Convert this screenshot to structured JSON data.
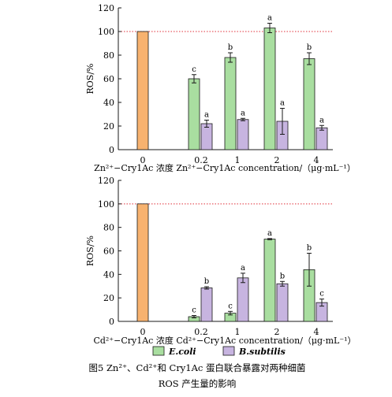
{
  "chart_data": [
    {
      "type": "bar",
      "ylabel": "ROS/%",
      "xlabel": "Zn²⁺−Cry1Ac 浓度 Zn²⁺−Cry1Ac concentration/（μg·mL⁻¹）",
      "ylim": [
        0,
        120
      ],
      "yticks": [
        "0",
        "20",
        "40",
        "60",
        "80",
        "100",
        "120"
      ],
      "reference_line": 100,
      "categories": [
        "0",
        "0.2",
        "1",
        "2",
        "4"
      ],
      "series": [
        {
          "name": "",
          "values": [
            100,
            null,
            null,
            null,
            null
          ],
          "errors": [
            0,
            null,
            null,
            null,
            null
          ],
          "letters": [
            "",
            "",
            "",
            "",
            ""
          ]
        },
        {
          "name": "E.coli",
          "values": [
            null,
            60,
            78,
            103,
            77
          ],
          "errors": [
            null,
            3.5,
            4,
            4,
            5
          ],
          "letters": [
            "",
            "c",
            "b",
            "a",
            "b"
          ]
        },
        {
          "name": "B.subtilis",
          "values": [
            null,
            22,
            25.5,
            24,
            18.5
          ],
          "errors": [
            null,
            3,
            1,
            11,
            2
          ],
          "letters": [
            "",
            "a",
            "a",
            "a",
            "a"
          ]
        }
      ]
    },
    {
      "type": "bar",
      "ylabel": "ROS/%",
      "xlabel": "Cd²⁺−Cry1Ac 浓度 Cd²⁺−Cry1Ac concentration/（μg·mL⁻¹）",
      "ylim": [
        0,
        120
      ],
      "yticks": [
        "0",
        "20",
        "40",
        "60",
        "80",
        "100",
        "120"
      ],
      "reference_line": 100,
      "categories": [
        "0",
        "0.2",
        "1",
        "2",
        "4"
      ],
      "series": [
        {
          "name": "",
          "values": [
            100,
            null,
            null,
            null,
            null
          ],
          "errors": [
            0,
            null,
            null,
            null,
            null
          ],
          "letters": [
            "",
            "",
            "",
            "",
            ""
          ]
        },
        {
          "name": "E.coli",
          "values": [
            null,
            4,
            7,
            70,
            44
          ],
          "errors": [
            null,
            1,
            1.5,
            0.5,
            14
          ],
          "letters": [
            "",
            "c",
            "c",
            "a",
            "b"
          ]
        },
        {
          "name": "B.subtilis",
          "values": [
            null,
            28.5,
            37,
            32,
            16
          ],
          "errors": [
            null,
            1,
            4,
            2,
            3
          ],
          "letters": [
            "",
            "b",
            "a",
            "b",
            "c"
          ]
        }
      ]
    }
  ],
  "legend": [
    {
      "label": "E.coli",
      "color": "#a9dea0"
    },
    {
      "label": "B.subtilis",
      "color": "#c7b4e0"
    }
  ],
  "colors": {
    "control": "#f7b26f",
    "ecoli": "#a9dea0",
    "bsubtilis": "#c7b4e0",
    "reference_line": "#e0303a"
  },
  "caption": {
    "line1": "图5  Zn²⁺、Cd²⁺和 Cry1Ac 蛋白联合暴露对两种细菌",
    "line2": "ROS 产生量的影响"
  }
}
